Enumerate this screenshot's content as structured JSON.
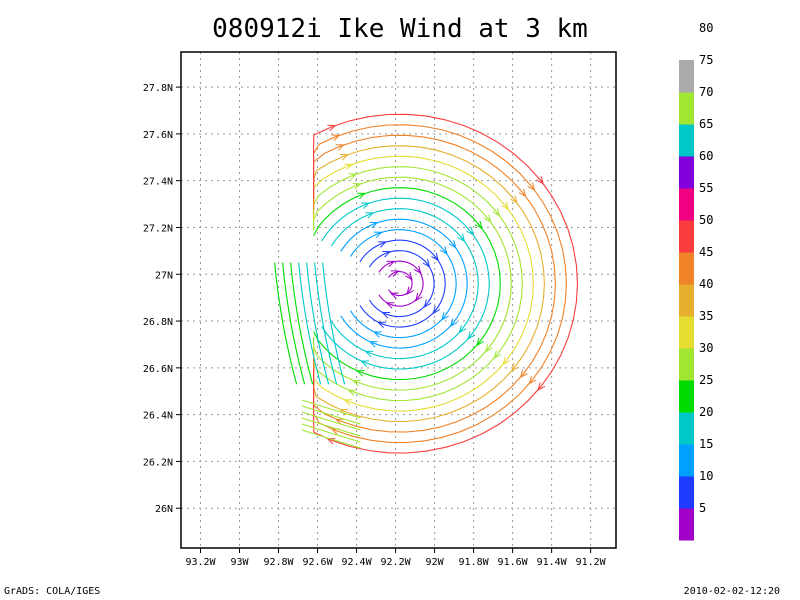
{
  "title": "080912i Ike Wind at 3 km",
  "footer": {
    "credit": "GrADS: COLA/IGES",
    "timestamp": "2010-02-02-12:20"
  },
  "chart_data": {
    "type": "streamline",
    "title": "080912i Ike Wind at 3 km",
    "x_axis": {
      "range": [
        -93.3,
        -91.07
      ],
      "ticks": [
        -93.2,
        -93.0,
        -92.8,
        -92.6,
        -92.4,
        -92.2,
        -92.0,
        -91.8,
        -91.6,
        -91.4,
        -91.2
      ],
      "tick_labels": [
        "93.2W",
        "93W",
        "92.8W",
        "92.6W",
        "92.4W",
        "92.2W",
        "92W",
        "91.8W",
        "91.6W",
        "91.4W",
        "91.2W"
      ]
    },
    "y_axis": {
      "range": [
        25.83,
        27.95
      ],
      "ticks": [
        26.0,
        26.2,
        26.4,
        26.6,
        26.8,
        27.0,
        27.2,
        27.4,
        27.6,
        27.8
      ],
      "tick_labels": [
        "26N",
        "26.2N",
        "26.4N",
        "26.6N",
        "26.8N",
        "27N",
        "27.2N",
        "27.4N",
        "27.6N",
        "27.8N"
      ]
    },
    "grid": true,
    "circulation_center": {
      "lon": -92.18,
      "lat": 26.96
    },
    "colorbar": {
      "labels": [
        "5",
        "10",
        "15",
        "20",
        "25",
        "30",
        "35",
        "40",
        "45",
        "50",
        "55",
        "60",
        "65",
        "70",
        "75",
        "80"
      ],
      "colors": [
        "#a000c8",
        "#1e3cff",
        "#00a0ff",
        "#00c8c8",
        "#00dc00",
        "#a0e632",
        "#e6dc32",
        "#e6af2d",
        "#f08228",
        "#fa3c3c",
        "#f00082",
        "#8200dc",
        "#00c8c8",
        "#a0e632",
        "#aaaaaa"
      ]
    }
  }
}
